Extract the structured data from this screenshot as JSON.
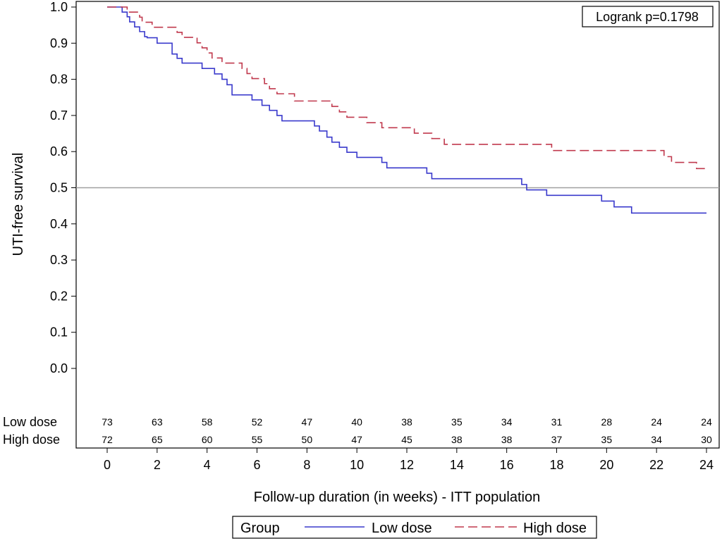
{
  "chart_data": {
    "type": "line",
    "subtype": "kaplan-meier step curve",
    "xlabel": "Follow-up duration (in weeks) - ITT population",
    "ylabel": "UTI-free survival",
    "xlim": [
      0,
      24
    ],
    "ylim": [
      0.0,
      1.0
    ],
    "x_ticks": [
      "0",
      "2",
      "4",
      "6",
      "8",
      "10",
      "12",
      "14",
      "16",
      "18",
      "20",
      "22",
      "24"
    ],
    "y_ticks": [
      "0.0",
      "0.1",
      "0.2",
      "0.3",
      "0.4",
      "0.5",
      "0.6",
      "0.7",
      "0.8",
      "0.9",
      "1.0"
    ],
    "reference_line": {
      "y": 0.5,
      "color": "#a0a0a0"
    },
    "annotation": "Logrank p=0.1798",
    "legend": {
      "title": "Group",
      "placement": "bottom"
    },
    "grid": false,
    "series": [
      {
        "name": "Low dose",
        "color": "#3a3acc",
        "dash": "solid",
        "x": [
          0,
          0.6,
          0.8,
          0.9,
          1.1,
          1.3,
          1.5,
          1.6,
          2.0,
          2.6,
          2.8,
          3.0,
          3.3,
          3.8,
          4.3,
          4.6,
          4.8,
          5.0,
          5.8,
          6.2,
          6.5,
          6.8,
          7.0,
          7.3,
          8.3,
          8.5,
          8.8,
          9.0,
          9.3,
          9.6,
          10.0,
          11.0,
          11.2,
          12.6,
          12.8,
          13.0,
          16.4,
          16.6,
          16.8,
          17.6,
          19.8,
          20.3,
          20.8,
          21.0,
          24.0
        ],
        "y": [
          1.0,
          0.986,
          0.973,
          0.959,
          0.945,
          0.932,
          0.918,
          0.915,
          0.9,
          0.87,
          0.858,
          0.845,
          0.845,
          0.83,
          0.815,
          0.8,
          0.785,
          0.757,
          0.743,
          0.728,
          0.714,
          0.7,
          0.685,
          0.685,
          0.671,
          0.657,
          0.64,
          0.626,
          0.612,
          0.598,
          0.584,
          0.57,
          0.555,
          0.555,
          0.54,
          0.525,
          0.525,
          0.509,
          0.494,
          0.479,
          0.463,
          0.447,
          0.447,
          0.43,
          0.43
        ]
      },
      {
        "name": "High dose",
        "color": "#c0394d",
        "dash": "dashed",
        "x": [
          0,
          0.8,
          1.0,
          1.3,
          1.4,
          1.8,
          2.6,
          2.8,
          3.0,
          3.6,
          3.8,
          4.0,
          4.2,
          4.6,
          5.0,
          5.4,
          5.6,
          5.8,
          6.0,
          6.3,
          6.5,
          6.8,
          7.0,
          7.5,
          8.6,
          9.0,
          9.3,
          9.6,
          10.0,
          10.4,
          11.0,
          12.0,
          12.3,
          12.6,
          13.0,
          13.5,
          17.4,
          17.8,
          22.3,
          22.6,
          23.2,
          23.6,
          24.0
        ],
        "y": [
          1.0,
          0.986,
          0.986,
          0.972,
          0.958,
          0.944,
          0.944,
          0.93,
          0.916,
          0.901,
          0.887,
          0.873,
          0.859,
          0.845,
          0.845,
          0.83,
          0.816,
          0.802,
          0.802,
          0.788,
          0.774,
          0.76,
          0.76,
          0.74,
          0.74,
          0.725,
          0.71,
          0.695,
          0.695,
          0.68,
          0.666,
          0.666,
          0.651,
          0.651,
          0.636,
          0.62,
          0.62,
          0.603,
          0.586,
          0.57,
          0.57,
          0.553,
          0.553
        ]
      }
    ],
    "risk_table": {
      "rows": [
        {
          "label": "Low dose",
          "values": [
            "73",
            "63",
            "58",
            "52",
            "47",
            "40",
            "38",
            "35",
            "34",
            "31",
            "28",
            "24",
            "24"
          ]
        },
        {
          "label": "High dose",
          "values": [
            "72",
            "65",
            "60",
            "55",
            "50",
            "47",
            "45",
            "38",
            "38",
            "37",
            "35",
            "34",
            "30"
          ]
        }
      ]
    }
  }
}
